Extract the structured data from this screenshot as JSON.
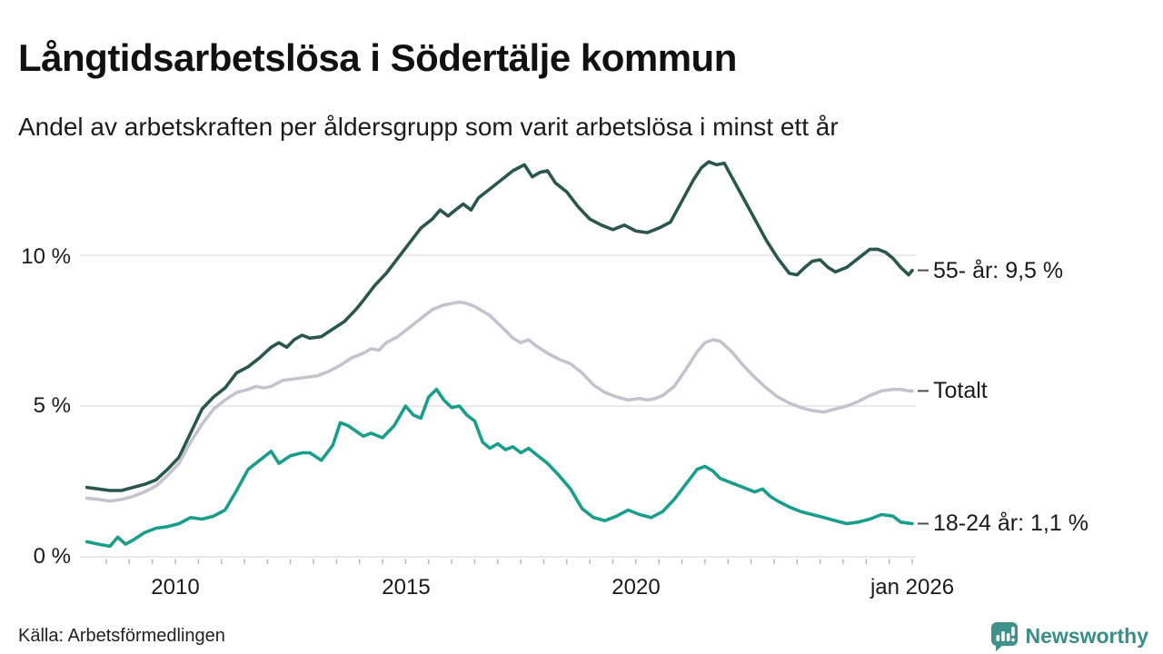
{
  "header": {
    "title": "Långtidsarbetslösa i Södertälje kommun",
    "subtitle": "Andel av arbetskraften per åldersgrupp som varit arbetslösa i minst ett år"
  },
  "chart_data": {
    "type": "line",
    "title": "Långtidsarbetslösa i Södertälje kommun",
    "subtitle": "Andel av arbetskraften per åldersgrupp som varit arbetslösa i minst ett år",
    "xlabel": "",
    "ylabel": "",
    "x_domain": [
      2008.08,
      2026.0
    ],
    "ylim": [
      0,
      13.5
    ],
    "grid": true,
    "gridline_color": "#e4e3e8",
    "y_ticks": [
      {
        "v": 0,
        "label": "0 %"
      },
      {
        "v": 5,
        "label": "5 %"
      },
      {
        "v": 10,
        "label": "10 %"
      }
    ],
    "x_ticks": [
      {
        "t": 2010,
        "label": "2010"
      },
      {
        "t": 2015,
        "label": "2015"
      },
      {
        "t": 2020,
        "label": "2020"
      },
      {
        "t": 2026,
        "label": "jan 2026"
      }
    ],
    "legend_position": "right-end-labels",
    "series": [
      {
        "name": "55- år",
        "end_label": "55- år: 9,5 %",
        "end_value": 9.5,
        "color": "#2a574a",
        "points": [
          [
            2008.08,
            2.3
          ],
          [
            2008.33,
            2.25
          ],
          [
            2008.58,
            2.2
          ],
          [
            2008.83,
            2.2
          ],
          [
            2009.08,
            2.3
          ],
          [
            2009.33,
            2.4
          ],
          [
            2009.58,
            2.55
          ],
          [
            2009.83,
            2.9
          ],
          [
            2010.08,
            3.3
          ],
          [
            2010.33,
            4.1
          ],
          [
            2010.58,
            4.9
          ],
          [
            2010.83,
            5.3
          ],
          [
            2011.08,
            5.6
          ],
          [
            2011.33,
            6.1
          ],
          [
            2011.58,
            6.3
          ],
          [
            2011.83,
            6.6
          ],
          [
            2012.08,
            6.95
          ],
          [
            2012.25,
            7.1
          ],
          [
            2012.42,
            6.95
          ],
          [
            2012.58,
            7.2
          ],
          [
            2012.75,
            7.35
          ],
          [
            2012.92,
            7.25
          ],
          [
            2013.17,
            7.3
          ],
          [
            2013.42,
            7.55
          ],
          [
            2013.67,
            7.8
          ],
          [
            2013.92,
            8.2
          ],
          [
            2014.08,
            8.5
          ],
          [
            2014.33,
            9.0
          ],
          [
            2014.58,
            9.4
          ],
          [
            2014.83,
            9.9
          ],
          [
            2015.08,
            10.4
          ],
          [
            2015.33,
            10.9
          ],
          [
            2015.58,
            11.2
          ],
          [
            2015.75,
            11.5
          ],
          [
            2015.92,
            11.3
          ],
          [
            2016.08,
            11.5
          ],
          [
            2016.25,
            11.7
          ],
          [
            2016.42,
            11.5
          ],
          [
            2016.58,
            11.9
          ],
          [
            2016.83,
            12.2
          ],
          [
            2017.08,
            12.5
          ],
          [
            2017.33,
            12.8
          ],
          [
            2017.58,
            13.0
          ],
          [
            2017.75,
            12.6
          ],
          [
            2017.92,
            12.75
          ],
          [
            2018.08,
            12.8
          ],
          [
            2018.25,
            12.4
          ],
          [
            2018.5,
            12.1
          ],
          [
            2018.75,
            11.6
          ],
          [
            2019.0,
            11.2
          ],
          [
            2019.25,
            11.0
          ],
          [
            2019.5,
            10.85
          ],
          [
            2019.75,
            11.0
          ],
          [
            2020.0,
            10.8
          ],
          [
            2020.25,
            10.75
          ],
          [
            2020.5,
            10.9
          ],
          [
            2020.75,
            11.1
          ],
          [
            2021.0,
            11.8
          ],
          [
            2021.25,
            12.5
          ],
          [
            2021.42,
            12.9
          ],
          [
            2021.58,
            13.1
          ],
          [
            2021.75,
            13.0
          ],
          [
            2021.92,
            13.05
          ],
          [
            2022.08,
            12.6
          ],
          [
            2022.33,
            11.9
          ],
          [
            2022.58,
            11.2
          ],
          [
            2022.83,
            10.5
          ],
          [
            2023.08,
            9.9
          ],
          [
            2023.33,
            9.4
          ],
          [
            2023.5,
            9.35
          ],
          [
            2023.67,
            9.6
          ],
          [
            2023.83,
            9.8
          ],
          [
            2024.0,
            9.85
          ],
          [
            2024.17,
            9.6
          ],
          [
            2024.33,
            9.45
          ],
          [
            2024.58,
            9.6
          ],
          [
            2024.83,
            9.9
          ],
          [
            2025.08,
            10.2
          ],
          [
            2025.25,
            10.2
          ],
          [
            2025.42,
            10.1
          ],
          [
            2025.58,
            9.9
          ],
          [
            2025.75,
            9.6
          ],
          [
            2025.92,
            9.35
          ],
          [
            2026.0,
            9.5
          ]
        ]
      },
      {
        "name": "Totalt",
        "end_label": "Totalt",
        "end_value": 5.5,
        "color": "#c5c3ce",
        "points": [
          [
            2008.08,
            1.95
          ],
          [
            2008.33,
            1.9
          ],
          [
            2008.58,
            1.85
          ],
          [
            2008.83,
            1.9
          ],
          [
            2009.08,
            2.0
          ],
          [
            2009.33,
            2.15
          ],
          [
            2009.58,
            2.35
          ],
          [
            2009.83,
            2.7
          ],
          [
            2010.08,
            3.1
          ],
          [
            2010.33,
            3.8
          ],
          [
            2010.58,
            4.4
          ],
          [
            2010.83,
            4.9
          ],
          [
            2011.08,
            5.2
          ],
          [
            2011.33,
            5.45
          ],
          [
            2011.58,
            5.55
          ],
          [
            2011.75,
            5.65
          ],
          [
            2011.92,
            5.6
          ],
          [
            2012.08,
            5.65
          ],
          [
            2012.33,
            5.85
          ],
          [
            2012.58,
            5.9
          ],
          [
            2012.83,
            5.95
          ],
          [
            2013.08,
            6.0
          ],
          [
            2013.33,
            6.15
          ],
          [
            2013.58,
            6.35
          ],
          [
            2013.83,
            6.6
          ],
          [
            2014.08,
            6.75
          ],
          [
            2014.25,
            6.9
          ],
          [
            2014.42,
            6.85
          ],
          [
            2014.58,
            7.1
          ],
          [
            2014.83,
            7.3
          ],
          [
            2015.08,
            7.6
          ],
          [
            2015.33,
            7.9
          ],
          [
            2015.58,
            8.2
          ],
          [
            2015.83,
            8.35
          ],
          [
            2016.0,
            8.4
          ],
          [
            2016.17,
            8.45
          ],
          [
            2016.33,
            8.4
          ],
          [
            2016.5,
            8.3
          ],
          [
            2016.67,
            8.15
          ],
          [
            2016.83,
            8.0
          ],
          [
            2017.0,
            7.75
          ],
          [
            2017.17,
            7.5
          ],
          [
            2017.33,
            7.25
          ],
          [
            2017.5,
            7.1
          ],
          [
            2017.67,
            7.2
          ],
          [
            2017.83,
            7.0
          ],
          [
            2018.08,
            6.75
          ],
          [
            2018.33,
            6.55
          ],
          [
            2018.58,
            6.4
          ],
          [
            2018.83,
            6.1
          ],
          [
            2019.08,
            5.7
          ],
          [
            2019.33,
            5.45
          ],
          [
            2019.58,
            5.3
          ],
          [
            2019.83,
            5.2
          ],
          [
            2020.08,
            5.25
          ],
          [
            2020.25,
            5.2
          ],
          [
            2020.42,
            5.25
          ],
          [
            2020.58,
            5.35
          ],
          [
            2020.83,
            5.65
          ],
          [
            2021.08,
            6.2
          ],
          [
            2021.33,
            6.8
          ],
          [
            2021.5,
            7.1
          ],
          [
            2021.67,
            7.2
          ],
          [
            2021.83,
            7.15
          ],
          [
            2022.08,
            6.8
          ],
          [
            2022.33,
            6.35
          ],
          [
            2022.58,
            5.95
          ],
          [
            2022.83,
            5.6
          ],
          [
            2023.08,
            5.3
          ],
          [
            2023.33,
            5.1
          ],
          [
            2023.58,
            4.95
          ],
          [
            2023.83,
            4.85
          ],
          [
            2024.08,
            4.8
          ],
          [
            2024.33,
            4.9
          ],
          [
            2024.58,
            5.0
          ],
          [
            2024.83,
            5.15
          ],
          [
            2025.08,
            5.35
          ],
          [
            2025.33,
            5.5
          ],
          [
            2025.58,
            5.55
          ],
          [
            2025.75,
            5.55
          ],
          [
            2025.92,
            5.5
          ],
          [
            2026.0,
            5.5
          ]
        ]
      },
      {
        "name": "18-24 år",
        "end_label": "18-24 år: 1,1 %",
        "end_value": 1.1,
        "color": "#1a9e8c",
        "points": [
          [
            2008.08,
            0.5
          ],
          [
            2008.33,
            0.42
          ],
          [
            2008.58,
            0.35
          ],
          [
            2008.75,
            0.65
          ],
          [
            2008.92,
            0.42
          ],
          [
            2009.08,
            0.55
          ],
          [
            2009.33,
            0.8
          ],
          [
            2009.58,
            0.95
          ],
          [
            2009.83,
            1.0
          ],
          [
            2010.08,
            1.1
          ],
          [
            2010.33,
            1.3
          ],
          [
            2010.58,
            1.25
          ],
          [
            2010.83,
            1.35
          ],
          [
            2011.08,
            1.55
          ],
          [
            2011.33,
            2.2
          ],
          [
            2011.58,
            2.9
          ],
          [
            2011.83,
            3.2
          ],
          [
            2012.08,
            3.5
          ],
          [
            2012.25,
            3.1
          ],
          [
            2012.5,
            3.35
          ],
          [
            2012.75,
            3.45
          ],
          [
            2012.92,
            3.45
          ],
          [
            2013.17,
            3.2
          ],
          [
            2013.42,
            3.7
          ],
          [
            2013.58,
            4.45
          ],
          [
            2013.75,
            4.35
          ],
          [
            2014.08,
            4.0
          ],
          [
            2014.25,
            4.1
          ],
          [
            2014.5,
            3.95
          ],
          [
            2014.75,
            4.35
          ],
          [
            2015.0,
            5.0
          ],
          [
            2015.17,
            4.7
          ],
          [
            2015.33,
            4.6
          ],
          [
            2015.5,
            5.3
          ],
          [
            2015.67,
            5.55
          ],
          [
            2015.83,
            5.2
          ],
          [
            2016.0,
            4.95
          ],
          [
            2016.17,
            5.0
          ],
          [
            2016.33,
            4.7
          ],
          [
            2016.5,
            4.5
          ],
          [
            2016.67,
            3.8
          ],
          [
            2016.83,
            3.6
          ],
          [
            2017.0,
            3.75
          ],
          [
            2017.17,
            3.55
          ],
          [
            2017.33,
            3.65
          ],
          [
            2017.5,
            3.45
          ],
          [
            2017.67,
            3.6
          ],
          [
            2017.83,
            3.4
          ],
          [
            2018.08,
            3.1
          ],
          [
            2018.33,
            2.7
          ],
          [
            2018.58,
            2.25
          ],
          [
            2018.83,
            1.6
          ],
          [
            2019.08,
            1.3
          ],
          [
            2019.33,
            1.2
          ],
          [
            2019.58,
            1.35
          ],
          [
            2019.83,
            1.55
          ],
          [
            2020.08,
            1.4
          ],
          [
            2020.33,
            1.3
          ],
          [
            2020.58,
            1.5
          ],
          [
            2020.83,
            1.9
          ],
          [
            2021.08,
            2.4
          ],
          [
            2021.33,
            2.9
          ],
          [
            2021.5,
            3.0
          ],
          [
            2021.67,
            2.85
          ],
          [
            2021.83,
            2.6
          ],
          [
            2022.08,
            2.45
          ],
          [
            2022.33,
            2.3
          ],
          [
            2022.58,
            2.15
          ],
          [
            2022.75,
            2.25
          ],
          [
            2022.92,
            2.0
          ],
          [
            2023.08,
            1.85
          ],
          [
            2023.33,
            1.65
          ],
          [
            2023.58,
            1.5
          ],
          [
            2023.83,
            1.4
          ],
          [
            2024.08,
            1.3
          ],
          [
            2024.33,
            1.2
          ],
          [
            2024.58,
            1.1
          ],
          [
            2024.83,
            1.15
          ],
          [
            2025.08,
            1.25
          ],
          [
            2025.33,
            1.4
          ],
          [
            2025.58,
            1.35
          ],
          [
            2025.75,
            1.15
          ],
          [
            2026.0,
            1.1
          ]
        ]
      }
    ]
  },
  "footer": {
    "source": "Källa: Arbetsförmedlingen",
    "logo_text": "Newsworthy",
    "logo_icon": "bar-chart-speech-bubble-icon",
    "logo_color": "#3a8e86"
  }
}
